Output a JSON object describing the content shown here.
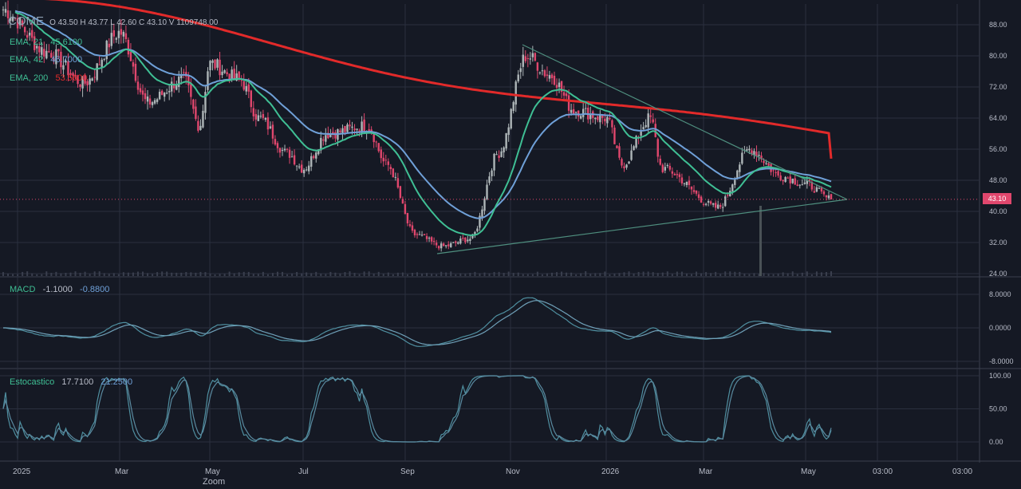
{
  "header": {
    "symbol": "COME",
    "ohlc": "O 43.50  H 43.77  L 42.60  C 43.10  V 1109748.00",
    "indicators": [
      {
        "name": "EMA, 21",
        "value": "45.6100",
        "color": "#3fbf94"
      },
      {
        "name": "EMA, 42",
        "value": "46.7000",
        "color": "#6fa0d8"
      },
      {
        "name": "EMA, 200",
        "value": "53.5600",
        "color": "#e22a2a"
      }
    ]
  },
  "macd_header": {
    "name": "MACD",
    "value1": "-1.1000",
    "value2": "-0.8800"
  },
  "stoch_header": {
    "name": "Estocastico",
    "value1": "17.7100",
    "value2": "21.2500"
  },
  "last_price_label": "43.10",
  "zoom_label": "Zoom",
  "colors": {
    "background": "#151924",
    "grid": "#2a2f3e",
    "candle_up": "#aeb6b8",
    "candle_down": "#e0476d",
    "ema21": "#3fbf94",
    "ema42": "#6fa0d8",
    "ema200": "#e22a2a",
    "trendline": "#4f8f7f",
    "osc_line": "#4f8fa0"
  },
  "chart_data": [
    {
      "type": "candlestick",
      "title": "COME",
      "y_ticks": [
        "88.00",
        "80.00",
        "72.00",
        "64.00",
        "56.00",
        "48.00",
        "40.00",
        "32.00",
        "24.00"
      ],
      "ylim": [
        24,
        90
      ],
      "x_ticks": [
        "2025",
        "Mar",
        "May",
        "Jul",
        "Sep",
        "Nov",
        "2026",
        "Mar",
        "May",
        "03:00",
        "03:00"
      ],
      "last_close": 43.1,
      "close_path": [
        {
          "date": "2025-01",
          "close": 92
        },
        {
          "date": "2025-02",
          "close": 81
        },
        {
          "date": "2025-02-20",
          "close": 73
        },
        {
          "date": "2025-03",
          "close": 86
        },
        {
          "date": "2025-03-20",
          "close": 68
        },
        {
          "date": "2025-04",
          "close": 74
        },
        {
          "date": "2025-04-20",
          "close": 62
        },
        {
          "date": "2025-05",
          "close": 78
        },
        {
          "date": "2025-05-20",
          "close": 74
        },
        {
          "date": "2025-06",
          "close": 64
        },
        {
          "date": "2025-06-20",
          "close": 55
        },
        {
          "date": "2025-07",
          "close": 51
        },
        {
          "date": "2025-07-20",
          "close": 60
        },
        {
          "date": "2025-08",
          "close": 62
        },
        {
          "date": "2025-08-20",
          "close": 52
        },
        {
          "date": "2025-09",
          "close": 34
        },
        {
          "date": "2025-09-20",
          "close": 31
        },
        {
          "date": "2025-10",
          "close": 33
        },
        {
          "date": "2025-10-20",
          "close": 55
        },
        {
          "date": "2025-11",
          "close": 80
        },
        {
          "date": "2025-11-20",
          "close": 75
        },
        {
          "date": "2025-12",
          "close": 66
        },
        {
          "date": "2026-01",
          "close": 64
        },
        {
          "date": "2026-01-20",
          "close": 52
        },
        {
          "date": "2026-02",
          "close": 64
        },
        {
          "date": "2026-02-20",
          "close": 51
        },
        {
          "date": "2026-03",
          "close": 41
        },
        {
          "date": "2026-03-20",
          "close": 56
        },
        {
          "date": "2026-04",
          "close": 49
        },
        {
          "date": "2026-04-20",
          "close": 47
        },
        {
          "date": "2026-05",
          "close": 43.1
        }
      ],
      "series": [
        {
          "name": "EMA, 21",
          "last": 45.61
        },
        {
          "name": "EMA, 42",
          "last": 46.7
        },
        {
          "name": "EMA, 200",
          "last": 53.56
        }
      ]
    },
    {
      "type": "line",
      "title": "MACD",
      "y_ticks": [
        "8.0000",
        "0.0000",
        "-8.0000"
      ],
      "ylim": [
        -10,
        12
      ],
      "series": [
        {
          "name": "MACD",
          "last": -1.1
        },
        {
          "name": "Signal",
          "last": -0.88
        }
      ]
    },
    {
      "type": "line",
      "title": "Estocastico",
      "y_ticks": [
        "100.00",
        "50.00",
        "0.00"
      ],
      "ylim": [
        -10,
        105
      ],
      "series": [
        {
          "name": "%K",
          "last": 17.71
        },
        {
          "name": "%D",
          "last": 21.25
        }
      ]
    }
  ]
}
